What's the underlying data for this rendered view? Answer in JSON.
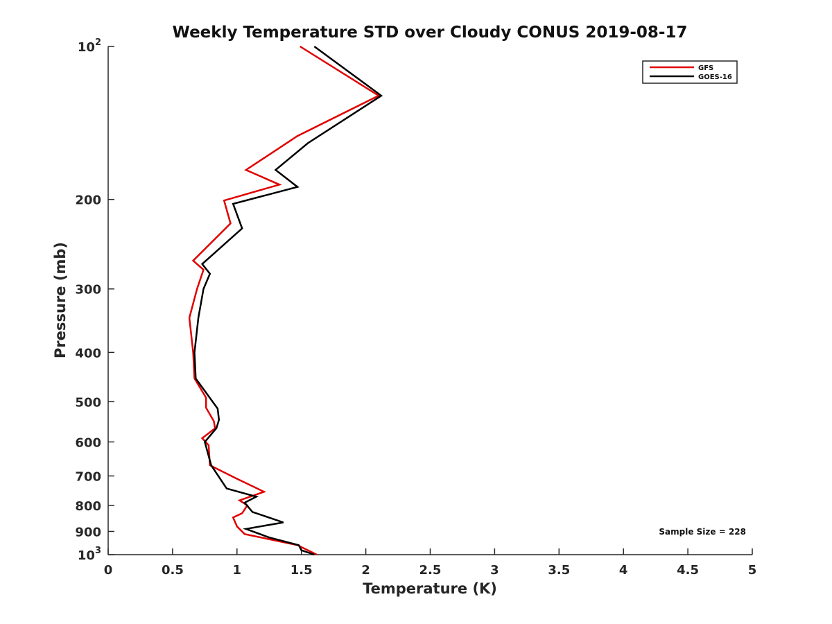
{
  "chart_data": {
    "type": "line",
    "title": "Weekly Temperature STD over Cloudy CONUS 2019-08-17",
    "xlabel": "Temperature (K)",
    "ylabel": "Pressure (mb)",
    "xlim": [
      0,
      5
    ],
    "ylim": [
      100,
      1000
    ],
    "y_scale": "log",
    "y_reversed": true,
    "grid": false,
    "legend_position": "top-right",
    "x_ticks": [
      {
        "value": 0,
        "label": "0"
      },
      {
        "value": 0.5,
        "label": "0.5"
      },
      {
        "value": 1,
        "label": "1"
      },
      {
        "value": 1.5,
        "label": "1.5"
      },
      {
        "value": 2,
        "label": "2"
      },
      {
        "value": 2.5,
        "label": "2.5"
      },
      {
        "value": 3,
        "label": "3"
      },
      {
        "value": 3.5,
        "label": "3.5"
      },
      {
        "value": 4,
        "label": "4"
      },
      {
        "value": 4.5,
        "label": "4.5"
      },
      {
        "value": 5,
        "label": "5"
      }
    ],
    "y_ticks": [
      {
        "value": 100,
        "base": "10",
        "exp": "2"
      },
      {
        "value": 200,
        "label": "200"
      },
      {
        "value": 300,
        "label": "300"
      },
      {
        "value": 400,
        "label": "400"
      },
      {
        "value": 500,
        "label": "500"
      },
      {
        "value": 600,
        "label": "600"
      },
      {
        "value": 700,
        "label": "700"
      },
      {
        "value": 800,
        "label": "800"
      },
      {
        "value": 900,
        "label": "900"
      },
      {
        "value": 1000,
        "base": "10",
        "exp": "3"
      }
    ],
    "annotation": "Sample Size = 228",
    "series": [
      {
        "name": "GFS",
        "color": "#e00000",
        "points": [
          [
            1.49,
            100
          ],
          [
            2.1,
            125
          ],
          [
            1.47,
            150
          ],
          [
            1.07,
            175
          ],
          [
            1.33,
            187
          ],
          [
            0.9,
            201
          ],
          [
            0.95,
            223
          ],
          [
            0.66,
            264
          ],
          [
            0.74,
            275
          ],
          [
            0.69,
            300
          ],
          [
            0.63,
            342
          ],
          [
            0.66,
            400
          ],
          [
            0.67,
            450
          ],
          [
            0.76,
            491
          ],
          [
            0.76,
            514
          ],
          [
            0.82,
            546
          ],
          [
            0.83,
            564
          ],
          [
            0.73,
            590
          ],
          [
            0.78,
            609
          ],
          [
            0.79,
            667
          ],
          [
            0.99,
            707
          ],
          [
            1.21,
            752
          ],
          [
            1.02,
            782
          ],
          [
            1.08,
            800
          ],
          [
            1.04,
            829
          ],
          [
            0.97,
            845
          ],
          [
            1.0,
            880
          ],
          [
            1.06,
            911
          ],
          [
            1.47,
            958
          ],
          [
            1.62,
            1000
          ]
        ]
      },
      {
        "name": "GOES-16",
        "color": "#000000",
        "points": [
          [
            1.6,
            100
          ],
          [
            2.12,
            125
          ],
          [
            1.55,
            155
          ],
          [
            1.3,
            175
          ],
          [
            1.47,
            189
          ],
          [
            0.97,
            204
          ],
          [
            1.04,
            228
          ],
          [
            0.73,
            268
          ],
          [
            0.79,
            280
          ],
          [
            0.74,
            300
          ],
          [
            0.7,
            342
          ],
          [
            0.67,
            400
          ],
          [
            0.68,
            450
          ],
          [
            0.85,
            516
          ],
          [
            0.86,
            543
          ],
          [
            0.84,
            564
          ],
          [
            0.75,
            600
          ],
          [
            0.8,
            667
          ],
          [
            0.92,
            741
          ],
          [
            1.15,
            769
          ],
          [
            1.06,
            790
          ],
          [
            1.12,
            824
          ],
          [
            1.36,
            864
          ],
          [
            1.07,
            890
          ],
          [
            1.25,
            925
          ],
          [
            1.48,
            958
          ],
          [
            1.5,
            980
          ],
          [
            1.6,
            1000
          ]
        ]
      }
    ]
  }
}
